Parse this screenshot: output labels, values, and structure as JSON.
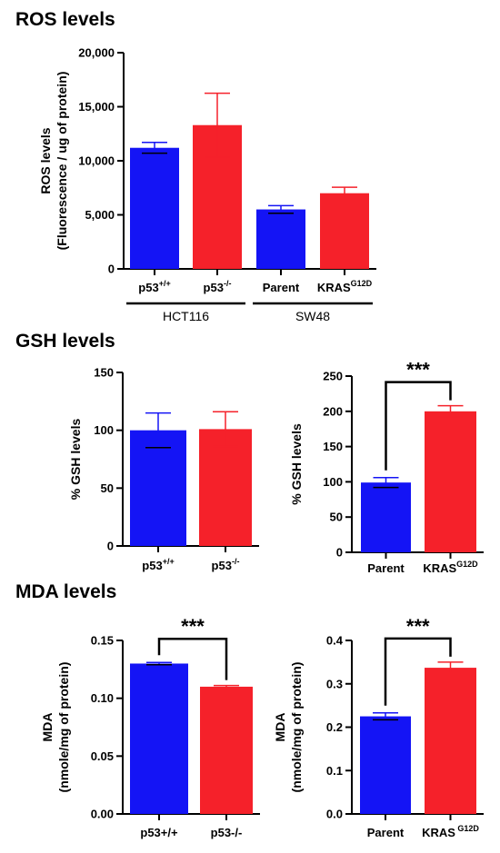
{
  "sections": {
    "ros": "ROS levels",
    "gsh": "GSH levels",
    "mda": "MDA levels"
  },
  "colors": {
    "blue": "#1414f5",
    "red": "#f5212a"
  },
  "chart_data": [
    {
      "id": "ros",
      "type": "bar",
      "ylabel": [
        "ROS levels",
        "(Fluorescence / ug of protein)"
      ],
      "ylim": [
        0,
        20000
      ],
      "yticks": [
        0,
        5000,
        10000,
        15000,
        20000
      ],
      "ytick_labels": [
        "0",
        "5,000",
        "10,000",
        "15,000",
        "20,000"
      ],
      "categories": [
        {
          "base": "p53",
          "sup": "+/+"
        },
        {
          "base": "p53",
          "sup": "-/-"
        },
        {
          "base": "Parent",
          "sup": ""
        },
        {
          "base": "KRAS",
          "sup": "G12D"
        }
      ],
      "values": [
        11200,
        13300,
        5500,
        7000
      ],
      "errors": [
        500,
        2950,
        350,
        550
      ],
      "bar_colors": [
        "blue",
        "red",
        "blue",
        "red"
      ],
      "groups": [
        {
          "label": "HCT116",
          "members": [
            0,
            1
          ]
        },
        {
          "label": "SW48",
          "members": [
            2,
            3
          ]
        }
      ],
      "significance": null
    },
    {
      "id": "gsh-hct116",
      "type": "bar",
      "ylabel": [
        "% GSH levels"
      ],
      "ylim": [
        0,
        150
      ],
      "yticks": [
        0,
        50,
        100,
        150
      ],
      "ytick_labels": [
        "0",
        "50",
        "100",
        "150"
      ],
      "categories": [
        {
          "base": "p53",
          "sup": "+/+"
        },
        {
          "base": "p53",
          "sup": "-/-"
        }
      ],
      "values": [
        100,
        101
      ],
      "errors": [
        15,
        15
      ],
      "bar_colors": [
        "blue",
        "red"
      ],
      "significance": null
    },
    {
      "id": "gsh-sw48",
      "type": "bar",
      "ylabel": [
        "% GSH levels"
      ],
      "ylim": [
        0,
        250
      ],
      "yticks": [
        0,
        50,
        100,
        150,
        200,
        250
      ],
      "ytick_labels": [
        "0",
        "50",
        "100",
        "150",
        "200",
        "250"
      ],
      "categories": [
        {
          "base": "Parent",
          "sup": ""
        },
        {
          "base": "KRAS",
          "sup": "G12D"
        }
      ],
      "values": [
        99,
        200
      ],
      "errors": [
        7,
        8
      ],
      "bar_colors": [
        "blue",
        "red"
      ],
      "significance": "***"
    },
    {
      "id": "mda-hct116",
      "type": "bar",
      "ylabel": [
        "MDA",
        "(nmole/mg of protein)"
      ],
      "ylim": [
        0,
        0.15
      ],
      "yticks": [
        0,
        0.05,
        0.1,
        0.15
      ],
      "ytick_labels": [
        "0.00",
        "0.05",
        "0.10",
        "0.15"
      ],
      "categories": [
        {
          "base": "p53+/+",
          "sup": ""
        },
        {
          "base": "p53-/-",
          "sup": ""
        }
      ],
      "values": [
        0.13,
        0.11
      ],
      "errors": [
        0.001,
        0.001
      ],
      "bar_colors": [
        "blue",
        "red"
      ],
      "significance": "***"
    },
    {
      "id": "mda-sw48",
      "type": "bar",
      "ylabel": [
        "MDA",
        "(nmole/mg of protein)"
      ],
      "ylim": [
        0,
        0.4
      ],
      "yticks": [
        0,
        0.1,
        0.2,
        0.3,
        0.4
      ],
      "ytick_labels": [
        "0.0",
        "0.1",
        "0.2",
        "0.3",
        "0.4"
      ],
      "categories": [
        {
          "base": "Parent",
          "sup": ""
        },
        {
          "base": "KRAS",
          "sup": " G12D"
        }
      ],
      "values": [
        0.225,
        0.337
      ],
      "errors": [
        0.008,
        0.013
      ],
      "bar_colors": [
        "blue",
        "red"
      ],
      "significance": "***"
    }
  ]
}
